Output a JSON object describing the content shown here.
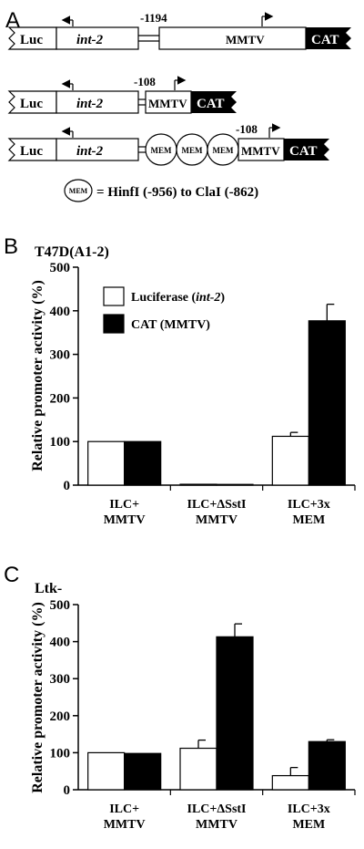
{
  "panel_a": {
    "letter": "A",
    "constructs": [
      {
        "luc": "Luc",
        "int2": "int-2",
        "pos": "-1194",
        "promoter": "MMTV",
        "reporter": "CAT"
      },
      {
        "luc": "Luc",
        "int2": "int-2",
        "pos": "-108",
        "promoter": "MMTV",
        "reporter": "CAT"
      },
      {
        "luc": "Luc",
        "int2": "int-2",
        "pos": "-108",
        "mem": [
          "MEM",
          "MEM",
          "MEM"
        ],
        "promoter": "MMTV",
        "reporter": "CAT"
      }
    ],
    "legend_symbol": "MEM",
    "legend_text": "= HinfI (-956) to ClaI (-862)"
  },
  "chart_data": [
    {
      "type": "bar",
      "panel": "B",
      "title": "T47D(A1-2)",
      "ylabel": "Relative promoter activity (%)",
      "ylim": [
        0,
        500
      ],
      "yticks": [
        "0",
        "100",
        "200",
        "300",
        "400",
        "500"
      ],
      "categories": [
        [
          "ILC+",
          "MMTV"
        ],
        [
          "ILC+ΔSstI",
          "MMTV"
        ],
        [
          "ILC+3x",
          "MEM"
        ]
      ],
      "legend": {
        "placement": "top-left"
      },
      "series": [
        {
          "name": "Luciferase (int-2)",
          "name_plain": "Luciferase (",
          "name_italic": "int-2",
          "name_close": ")",
          "color": "#ffffff",
          "values": [
            100,
            2,
            112
          ],
          "errors": [
            0,
            0,
            9
          ]
        },
        {
          "name": "CAT (MMTV)",
          "color": "#000000",
          "values": [
            100,
            1,
            377
          ],
          "errors": [
            0,
            0,
            38
          ]
        }
      ]
    },
    {
      "type": "bar",
      "panel": "C",
      "title": "Ltk-",
      "ylabel": "Relative promoter activity (%)",
      "ylim": [
        0,
        500
      ],
      "yticks": [
        "0",
        "100",
        "200",
        "300",
        "400",
        "500"
      ],
      "categories": [
        [
          "ILC+",
          "MMTV"
        ],
        [
          "ILC+ΔSstI",
          "MMTV"
        ],
        [
          "ILC+3x",
          "MEM"
        ]
      ],
      "series": [
        {
          "color": "#ffffff",
          "values": [
            100,
            112,
            38
          ],
          "errors": [
            0,
            22,
            22
          ]
        },
        {
          "color": "#000000",
          "values": [
            98,
            413,
            130
          ],
          "errors": [
            0,
            35,
            5
          ]
        }
      ]
    }
  ]
}
